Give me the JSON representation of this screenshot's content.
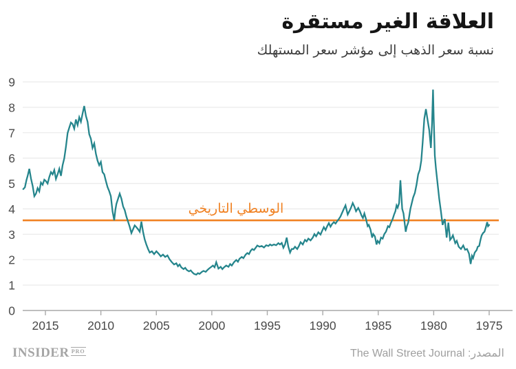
{
  "header": {
    "title": "العلاقة الغير مستقرة",
    "subtitle": "نسبة سعر الذهب إلى مؤشر سعر المستهلك"
  },
  "footer": {
    "logo_main": "INSIDER",
    "logo_sub": "PRO",
    "source": "المصدر: The Wall Street Journal"
  },
  "colors": {
    "line": "#25858C",
    "median": "#F08122",
    "grid": "#EBEBEB",
    "axis": "#A9A9A9",
    "tick_label": "#4A4A4A",
    "title_text": "#151515",
    "footer_text": "#9F9F9F"
  },
  "chart_data": {
    "type": "line",
    "title": "العلاقة الغير مستقرة",
    "subtitle": "نسبة سعر الذهب إلى مؤشر سعر المستهلك",
    "xlabel": "",
    "ylabel": "",
    "x_axis": {
      "reversed": true,
      "domain": [
        1975.0,
        2017.05
      ],
      "ticks": [
        2015,
        2010,
        2005,
        2000,
        1995,
        1990,
        1985,
        1980,
        1975
      ]
    },
    "y_axis": {
      "domain": [
        0,
        9
      ],
      "ticks": [
        0,
        1,
        2,
        3,
        4,
        5,
        6,
        7,
        8,
        9
      ]
    },
    "grid": true,
    "legend": "none",
    "median_line": {
      "value": 3.55,
      "label": "الوسطي التاريخي"
    },
    "series": [
      {
        "name": "gold-price-to-cpi-ratio",
        "points": [
          [
            1975.0,
            3.37
          ],
          [
            1975.1,
            3.32
          ],
          [
            1975.18,
            3.48
          ],
          [
            1975.3,
            3.28
          ],
          [
            1975.42,
            3.1
          ],
          [
            1975.55,
            3.05
          ],
          [
            1975.68,
            2.95
          ],
          [
            1975.78,
            2.78
          ],
          [
            1975.9,
            2.54
          ],
          [
            1976.03,
            2.51
          ],
          [
            1976.13,
            2.38
          ],
          [
            1976.3,
            2.28
          ],
          [
            1976.45,
            2.06
          ],
          [
            1976.55,
            2.15
          ],
          [
            1976.67,
            1.83
          ],
          [
            1976.82,
            2.24
          ],
          [
            1977.0,
            2.42
          ],
          [
            1977.17,
            2.39
          ],
          [
            1977.34,
            2.56
          ],
          [
            1977.54,
            2.42
          ],
          [
            1977.75,
            2.51
          ],
          [
            1977.92,
            2.74
          ],
          [
            1978.06,
            2.65
          ],
          [
            1978.27,
            2.96
          ],
          [
            1978.4,
            2.85
          ],
          [
            1978.52,
            2.78
          ],
          [
            1978.68,
            3.46
          ],
          [
            1978.83,
            2.87
          ],
          [
            1979.0,
            3.6
          ],
          [
            1979.2,
            3.37
          ],
          [
            1979.35,
            3.9
          ],
          [
            1979.5,
            4.4
          ],
          [
            1979.65,
            5.0
          ],
          [
            1979.8,
            5.6
          ],
          [
            1979.9,
            6.1
          ],
          [
            1980.0,
            7.6
          ],
          [
            1980.06,
            8.7
          ],
          [
            1980.15,
            7.4
          ],
          [
            1980.25,
            6.4
          ],
          [
            1980.4,
            7.1
          ],
          [
            1980.55,
            7.5
          ],
          [
            1980.7,
            7.93
          ],
          [
            1980.85,
            7.55
          ],
          [
            1981.0,
            6.6
          ],
          [
            1981.12,
            5.9
          ],
          [
            1981.25,
            5.54
          ],
          [
            1981.4,
            5.36
          ],
          [
            1981.55,
            4.95
          ],
          [
            1981.7,
            4.63
          ],
          [
            1981.85,
            4.45
          ],
          [
            1982.0,
            4.18
          ],
          [
            1982.1,
            4.0
          ],
          [
            1982.2,
            3.73
          ],
          [
            1982.3,
            3.46
          ],
          [
            1982.42,
            3.32
          ],
          [
            1982.52,
            3.1
          ],
          [
            1982.62,
            3.46
          ],
          [
            1982.72,
            3.82
          ],
          [
            1982.84,
            4.0
          ],
          [
            1983.0,
            5.13
          ],
          [
            1983.12,
            4.23
          ],
          [
            1983.25,
            4.05
          ],
          [
            1983.35,
            4.14
          ],
          [
            1983.45,
            3.91
          ],
          [
            1983.57,
            3.78
          ],
          [
            1983.7,
            3.6
          ],
          [
            1983.85,
            3.46
          ],
          [
            1984.0,
            3.28
          ],
          [
            1984.12,
            3.32
          ],
          [
            1984.3,
            3.1
          ],
          [
            1984.45,
            3.01
          ],
          [
            1984.6,
            2.83
          ],
          [
            1984.75,
            2.87
          ],
          [
            1984.9,
            2.65
          ],
          [
            1985.05,
            2.74
          ],
          [
            1985.15,
            2.6
          ],
          [
            1985.3,
            2.92
          ],
          [
            1985.45,
            3.01
          ],
          [
            1985.55,
            2.87
          ],
          [
            1985.7,
            3.19
          ],
          [
            1985.85,
            3.37
          ],
          [
            1985.95,
            3.32
          ],
          [
            1986.1,
            3.6
          ],
          [
            1986.25,
            3.82
          ],
          [
            1986.38,
            3.64
          ],
          [
            1986.5,
            3.73
          ],
          [
            1986.65,
            3.91
          ],
          [
            1986.8,
            4.04
          ],
          [
            1987.0,
            3.91
          ],
          [
            1987.15,
            4.09
          ],
          [
            1987.3,
            4.23
          ],
          [
            1987.45,
            4.05
          ],
          [
            1987.6,
            3.91
          ],
          [
            1987.75,
            3.78
          ],
          [
            1987.95,
            4.14
          ],
          [
            1988.1,
            4.0
          ],
          [
            1988.25,
            3.85
          ],
          [
            1988.4,
            3.7
          ],
          [
            1988.55,
            3.6
          ],
          [
            1988.7,
            3.52
          ],
          [
            1988.85,
            3.42
          ],
          [
            1989.0,
            3.48
          ],
          [
            1989.15,
            3.41
          ],
          [
            1989.3,
            3.3
          ],
          [
            1989.45,
            3.44
          ],
          [
            1989.6,
            3.32
          ],
          [
            1989.75,
            3.17
          ],
          [
            1989.9,
            3.28
          ],
          [
            1990.05,
            3.14
          ],
          [
            1990.2,
            2.99
          ],
          [
            1990.4,
            3.08
          ],
          [
            1990.6,
            2.92
          ],
          [
            1990.75,
            3.01
          ],
          [
            1990.9,
            2.87
          ],
          [
            1991.1,
            2.76
          ],
          [
            1991.3,
            2.83
          ],
          [
            1991.45,
            2.72
          ],
          [
            1991.6,
            2.78
          ],
          [
            1991.8,
            2.6
          ],
          [
            1992.0,
            2.69
          ],
          [
            1992.15,
            2.54
          ],
          [
            1992.3,
            2.42
          ],
          [
            1992.5,
            2.51
          ],
          [
            1992.65,
            2.42
          ],
          [
            1992.8,
            2.42
          ],
          [
            1992.95,
            2.28
          ],
          [
            1993.1,
            2.51
          ],
          [
            1993.25,
            2.87
          ],
          [
            1993.4,
            2.6
          ],
          [
            1993.55,
            2.47
          ],
          [
            1993.7,
            2.66
          ],
          [
            1993.85,
            2.6
          ],
          [
            1994.0,
            2.65
          ],
          [
            1994.2,
            2.57
          ],
          [
            1994.4,
            2.6
          ],
          [
            1994.6,
            2.56
          ],
          [
            1994.75,
            2.6
          ],
          [
            1994.9,
            2.54
          ],
          [
            1995.1,
            2.57
          ],
          [
            1995.3,
            2.48
          ],
          [
            1995.5,
            2.54
          ],
          [
            1995.7,
            2.51
          ],
          [
            1995.9,
            2.56
          ],
          [
            1996.05,
            2.47
          ],
          [
            1996.2,
            2.38
          ],
          [
            1996.35,
            2.42
          ],
          [
            1996.5,
            2.35
          ],
          [
            1996.65,
            2.22
          ],
          [
            1996.8,
            2.26
          ],
          [
            1996.95,
            2.2
          ],
          [
            1997.15,
            2.06
          ],
          [
            1997.3,
            2.11
          ],
          [
            1997.5,
            2.04
          ],
          [
            1997.65,
            1.92
          ],
          [
            1997.8,
            1.99
          ],
          [
            1998.0,
            1.9
          ],
          [
            1998.2,
            1.77
          ],
          [
            1998.35,
            1.83
          ],
          [
            1998.5,
            1.72
          ],
          [
            1998.7,
            1.77
          ],
          [
            1998.9,
            1.7
          ],
          [
            1999.05,
            1.63
          ],
          [
            1999.2,
            1.72
          ],
          [
            1999.4,
            1.65
          ],
          [
            1999.6,
            1.9
          ],
          [
            1999.75,
            1.7
          ],
          [
            1999.9,
            1.77
          ],
          [
            2000.05,
            1.72
          ],
          [
            2000.25,
            1.65
          ],
          [
            2000.4,
            1.59
          ],
          [
            2000.55,
            1.52
          ],
          [
            2000.75,
            1.56
          ],
          [
            2000.9,
            1.52
          ],
          [
            2001.1,
            1.44
          ],
          [
            2001.25,
            1.47
          ],
          [
            2001.4,
            1.41
          ],
          [
            2001.6,
            1.44
          ],
          [
            2001.75,
            1.5
          ],
          [
            2001.9,
            1.58
          ],
          [
            2002.05,
            1.54
          ],
          [
            2002.25,
            1.59
          ],
          [
            2002.4,
            1.68
          ],
          [
            2002.55,
            1.63
          ],
          [
            2002.75,
            1.7
          ],
          [
            2002.9,
            1.81
          ],
          [
            2003.05,
            1.74
          ],
          [
            2003.2,
            1.86
          ],
          [
            2003.4,
            1.81
          ],
          [
            2003.6,
            1.9
          ],
          [
            2003.8,
            2.01
          ],
          [
            2004.0,
            2.17
          ],
          [
            2004.2,
            2.11
          ],
          [
            2004.4,
            2.2
          ],
          [
            2004.6,
            2.13
          ],
          [
            2004.8,
            2.24
          ],
          [
            2005.0,
            2.33
          ],
          [
            2005.2,
            2.22
          ],
          [
            2005.4,
            2.33
          ],
          [
            2005.6,
            2.28
          ],
          [
            2005.75,
            2.42
          ],
          [
            2005.9,
            2.6
          ],
          [
            2006.05,
            2.8
          ],
          [
            2006.2,
            3.1
          ],
          [
            2006.35,
            3.5
          ],
          [
            2006.5,
            3.1
          ],
          [
            2006.65,
            3.2
          ],
          [
            2006.8,
            3.28
          ],
          [
            2006.95,
            3.35
          ],
          [
            2007.1,
            3.2
          ],
          [
            2007.25,
            3.05
          ],
          [
            2007.4,
            3.3
          ],
          [
            2007.55,
            3.5
          ],
          [
            2007.7,
            3.7
          ],
          [
            2007.85,
            3.95
          ],
          [
            2008.0,
            4.1
          ],
          [
            2008.15,
            4.4
          ],
          [
            2008.3,
            4.6
          ],
          [
            2008.45,
            4.4
          ],
          [
            2008.6,
            4.2
          ],
          [
            2008.7,
            3.95
          ],
          [
            2008.8,
            3.55
          ],
          [
            2008.95,
            3.9
          ],
          [
            2009.1,
            4.5
          ],
          [
            2009.25,
            4.7
          ],
          [
            2009.4,
            4.86
          ],
          [
            2009.55,
            5.1
          ],
          [
            2009.7,
            5.36
          ],
          [
            2009.85,
            5.45
          ],
          [
            2010.0,
            5.85
          ],
          [
            2010.15,
            5.72
          ],
          [
            2010.3,
            5.9
          ],
          [
            2010.45,
            6.17
          ],
          [
            2010.6,
            6.58
          ],
          [
            2010.75,
            6.4
          ],
          [
            2010.9,
            6.76
          ],
          [
            2011.05,
            6.94
          ],
          [
            2011.2,
            7.43
          ],
          [
            2011.35,
            7.66
          ],
          [
            2011.5,
            8.05
          ],
          [
            2011.65,
            7.75
          ],
          [
            2011.8,
            7.43
          ],
          [
            2011.95,
            7.61
          ],
          [
            2012.1,
            7.3
          ],
          [
            2012.25,
            7.52
          ],
          [
            2012.4,
            7.16
          ],
          [
            2012.55,
            7.34
          ],
          [
            2012.7,
            7.4
          ],
          [
            2012.85,
            7.2
          ],
          [
            2013.0,
            6.99
          ],
          [
            2013.15,
            6.44
          ],
          [
            2013.3,
            5.99
          ],
          [
            2013.45,
            5.72
          ],
          [
            2013.6,
            5.3
          ],
          [
            2013.75,
            5.58
          ],
          [
            2013.9,
            5.36
          ],
          [
            2014.05,
            5.18
          ],
          [
            2014.2,
            5.53
          ],
          [
            2014.35,
            5.36
          ],
          [
            2014.5,
            5.45
          ],
          [
            2014.65,
            5.25
          ],
          [
            2014.8,
            5.0
          ],
          [
            2014.95,
            5.09
          ],
          [
            2015.1,
            5.15
          ],
          [
            2015.25,
            4.95
          ],
          [
            2015.4,
            5.04
          ],
          [
            2015.55,
            4.69
          ],
          [
            2015.7,
            4.82
          ],
          [
            2015.85,
            4.6
          ],
          [
            2016.0,
            4.5
          ],
          [
            2016.15,
            4.9
          ],
          [
            2016.3,
            5.2
          ],
          [
            2016.45,
            5.58
          ],
          [
            2016.6,
            5.3
          ],
          [
            2016.7,
            5.15
          ],
          [
            2016.85,
            4.85
          ],
          [
            2017.0,
            4.78
          ]
        ]
      }
    ]
  }
}
